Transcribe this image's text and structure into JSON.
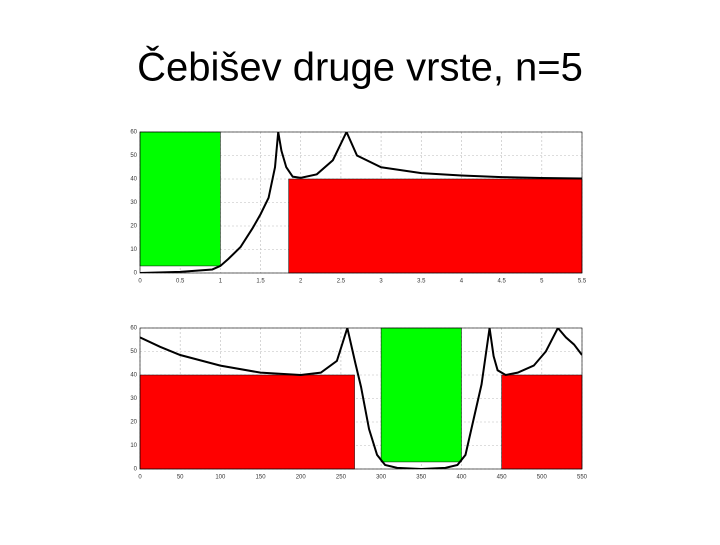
{
  "title": "Čebišev druge vrste, n=5",
  "chart_data": [
    {
      "type": "line",
      "grid": true,
      "xlim": [
        0,
        5.5
      ],
      "xticks": [
        0,
        0.5,
        1,
        1.5,
        2,
        2.5,
        3,
        3.5,
        4,
        4.5,
        5,
        5.5
      ],
      "ylim": [
        0,
        60
      ],
      "yticks": [
        0,
        10,
        20,
        30,
        40,
        50,
        60
      ],
      "regions": [
        {
          "color": "#00ff00",
          "x": [
            0,
            1
          ],
          "y": [
            3,
            60
          ]
        },
        {
          "color": "#ff0000",
          "x": [
            1.85,
            5.5
          ],
          "y": [
            0,
            40
          ]
        }
      ],
      "series": [
        {
          "color": "#000000",
          "x": [
            0,
            0.5,
            0.9,
            1,
            1.1,
            1.25,
            1.4,
            1.5,
            1.6,
            1.68,
            1.72,
            1.76,
            1.82,
            1.9,
            2,
            2.2,
            2.4,
            2.57,
            2.7,
            3,
            3.5,
            4,
            4.5,
            5,
            5.5
          ],
          "values": [
            0,
            0.5,
            1.5,
            3,
            6,
            11,
            19,
            25,
            32,
            45,
            60,
            52,
            45,
            41,
            40.5,
            42,
            48,
            60,
            50,
            45,
            42.5,
            41.5,
            40.8,
            40.4,
            40.2
          ]
        }
      ]
    },
    {
      "type": "line",
      "grid": true,
      "xlim": [
        0,
        550
      ],
      "xticks": [
        0,
        50,
        100,
        150,
        200,
        250,
        300,
        350,
        400,
        450,
        500,
        550
      ],
      "ylim": [
        0,
        60
      ],
      "yticks": [
        0,
        10,
        20,
        30,
        40,
        50,
        60
      ],
      "regions": [
        {
          "color": "#ff0000",
          "x": [
            0,
            267
          ],
          "y": [
            0,
            40
          ]
        },
        {
          "color": "#00ff00",
          "x": [
            300,
            400
          ],
          "y": [
            3,
            60
          ]
        },
        {
          "color": "#ff0000",
          "x": [
            450,
            550
          ],
          "y": [
            0,
            40
          ]
        }
      ],
      "series": [
        {
          "color": "#000000",
          "x": [
            0,
            25,
            50,
            100,
            150,
            200,
            225,
            245,
            258,
            268,
            275,
            285,
            295,
            305,
            320,
            350,
            380,
            395,
            405,
            415,
            425,
            435,
            440,
            445,
            455,
            470,
            490,
            505,
            520,
            530,
            540,
            550
          ],
          "values": [
            56,
            52,
            48.5,
            44,
            41,
            40,
            41,
            46,
            60,
            45,
            35,
            17,
            6,
            1.7,
            0.5,
            0,
            0.5,
            1.7,
            6,
            21,
            36,
            60,
            48,
            42,
            40,
            41,
            44,
            50,
            60,
            56,
            53,
            48.5
          ]
        }
      ]
    }
  ]
}
